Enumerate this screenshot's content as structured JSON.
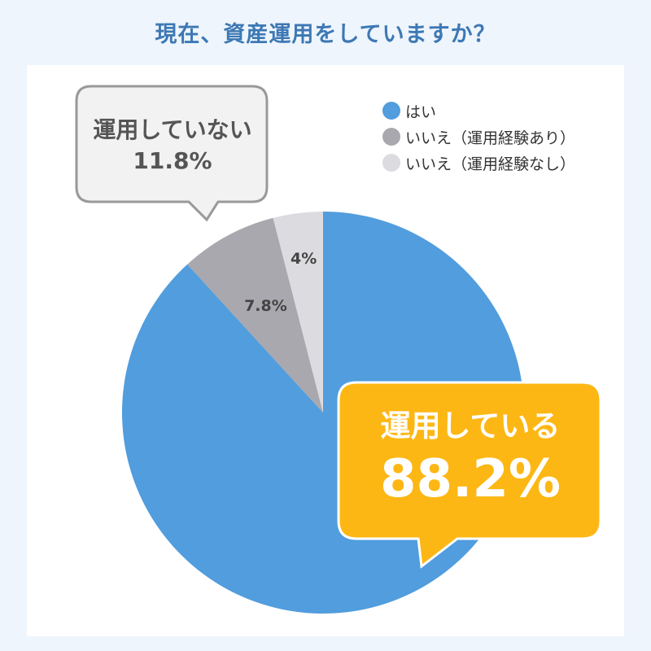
{
  "page": {
    "title": "現在、資産運用をしていますか？"
  },
  "colors": {
    "yes": "#519ddd",
    "no_experienced": "#a9a8ae",
    "no_inexperienced": "#dcdce0",
    "callout_yes": "#fdb714",
    "callout_no": "#f2f2f2",
    "title": "#3d78b4"
  },
  "chart_data": {
    "type": "pie",
    "title": "現在、資産運用をしていますか？",
    "categories": [
      "はい",
      "いいえ（運用経験あり）",
      "いいえ（運用経験なし）"
    ],
    "values": [
      88.2,
      7.8,
      4
    ],
    "slice_labels": [
      "",
      "7.8%",
      "4%"
    ],
    "legend": "top-right"
  },
  "callouts": {
    "not_investing": {
      "label": "運用していない",
      "value": "11.8%"
    },
    "investing": {
      "label": "運用している",
      "value": "88.2%"
    }
  }
}
